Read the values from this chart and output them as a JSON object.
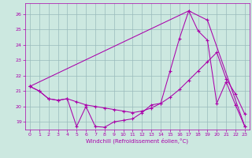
{
  "xlabel": "Windchill (Refroidissement éolien,°C)",
  "xlim": [
    -0.5,
    23.5
  ],
  "ylim": [
    18.5,
    26.7
  ],
  "yticks": [
    19,
    20,
    21,
    22,
    23,
    24,
    25,
    26
  ],
  "xticks": [
    0,
    1,
    2,
    3,
    4,
    5,
    6,
    7,
    8,
    9,
    10,
    11,
    12,
    13,
    14,
    15,
    16,
    17,
    18,
    19,
    20,
    21,
    22,
    23
  ],
  "bg_color": "#cce8e0",
  "line_color": "#aa00aa",
  "grid_color": "#99bbbb",
  "line1_x": [
    0,
    1,
    2,
    3,
    4,
    5,
    6,
    7,
    8,
    9,
    10,
    11,
    12,
    13,
    14,
    15,
    16,
    17,
    18,
    19,
    20,
    21,
    22,
    23
  ],
  "line1_y": [
    21.3,
    21.0,
    20.5,
    20.4,
    20.5,
    18.7,
    20.0,
    18.7,
    18.65,
    19.0,
    19.1,
    19.2,
    19.6,
    20.1,
    20.2,
    22.3,
    24.4,
    26.2,
    24.9,
    24.3,
    20.2,
    21.6,
    20.1,
    18.7
  ],
  "line2_x": [
    0,
    1,
    2,
    3,
    4,
    5,
    6,
    7,
    8,
    9,
    10,
    11,
    12,
    13,
    14,
    15,
    16,
    17,
    18,
    19,
    20,
    21,
    22,
    23
  ],
  "line2_y": [
    21.3,
    21.0,
    20.5,
    20.4,
    20.5,
    20.3,
    20.1,
    20.0,
    19.9,
    19.8,
    19.7,
    19.6,
    19.7,
    19.9,
    20.2,
    20.6,
    21.1,
    21.7,
    22.3,
    22.9,
    23.5,
    21.8,
    20.8,
    19.5
  ],
  "line3_x": [
    0,
    17,
    19,
    23
  ],
  "line3_y": [
    21.3,
    26.2,
    25.6,
    18.7
  ]
}
